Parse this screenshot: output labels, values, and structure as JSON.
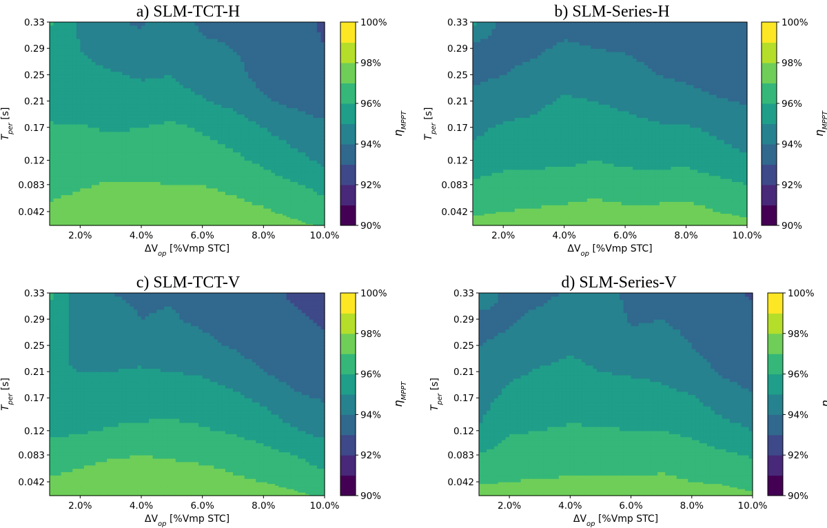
{
  "chart_data": [
    {
      "type": "heatmap",
      "subtype": "filled-contour",
      "title": "a) SLM-TCT-H",
      "xlabel": "ΔV_op [%Vmp STC]",
      "ylabel": "T_per [s]",
      "colorbar_label": "η_MPPT",
      "x_ticks": [
        "2.0%",
        "4.0%",
        "6.0%",
        "8.0%",
        "10.0%"
      ],
      "y_ticks": [
        "0.042",
        "0.083",
        "0.12",
        "0.17",
        "0.21",
        "0.25",
        "0.29",
        "0.33"
      ],
      "x": [
        1,
        2,
        3,
        4,
        5,
        6,
        7,
        8,
        9,
        10
      ],
      "y": [
        0.021,
        0.042,
        0.083,
        0.12,
        0.17,
        0.21,
        0.25,
        0.29,
        0.33
      ],
      "z": [
        [
          97.6,
          97.7,
          97.9,
          97.9,
          97.9,
          97.8,
          97.7,
          97.5,
          97.2,
          96.9
        ],
        [
          97.2,
          97.4,
          97.6,
          97.7,
          97.6,
          97.5,
          97.3,
          97.1,
          96.8,
          96.4
        ],
        [
          96.7,
          96.9,
          97.1,
          97.1,
          97.0,
          97.0,
          96.8,
          96.5,
          96.1,
          95.7
        ],
        [
          96.3,
          96.4,
          96.5,
          96.5,
          96.5,
          96.4,
          96.2,
          95.8,
          95.3,
          94.8
        ],
        [
          96.1,
          96.1,
          95.9,
          96.0,
          96.2,
          95.9,
          95.6,
          95.0,
          94.5,
          94.2
        ],
        [
          95.6,
          95.3,
          95.2,
          95.4,
          95.3,
          95.1,
          94.7,
          94.1,
          93.8,
          93.5
        ],
        [
          95.6,
          95.2,
          95.1,
          94.9,
          95.0,
          94.6,
          94.3,
          93.7,
          93.6,
          93.3
        ],
        [
          95.9,
          95.0,
          94.6,
          94.3,
          94.7,
          94.2,
          94.0,
          93.6,
          93.3,
          93.0
        ],
        [
          96.1,
          94.8,
          94.1,
          93.9,
          94.6,
          93.8,
          93.7,
          93.5,
          93.2,
          92.9
        ]
      ]
    },
    {
      "type": "heatmap",
      "subtype": "filled-contour",
      "title": "b) SLM-Series-H",
      "xlabel": "ΔV_op [%Vmp STC]",
      "ylabel": "T_per [s]",
      "colorbar_label": "η_MPPT",
      "x_ticks": [
        "2.0%",
        "4.0%",
        "6.0%",
        "8.0%",
        "10.0%"
      ],
      "y_ticks": [
        "0.042",
        "0.083",
        "0.12",
        "0.17",
        "0.21",
        "0.25",
        "0.29",
        "0.33"
      ],
      "x": [
        1,
        2,
        3,
        4,
        5,
        6,
        7,
        8,
        9,
        10
      ],
      "y": [
        0.021,
        0.042,
        0.083,
        0.12,
        0.17,
        0.21,
        0.25,
        0.29,
        0.33
      ],
      "z": [
        [
          97.5,
          97.6,
          97.7,
          97.7,
          97.8,
          97.7,
          97.7,
          97.8,
          97.6,
          97.3
        ],
        [
          96.8,
          97.0,
          97.1,
          97.2,
          97.3,
          97.2,
          97.2,
          97.3,
          97.0,
          96.8
        ],
        [
          96.2,
          96.4,
          96.4,
          96.5,
          96.7,
          96.5,
          96.5,
          96.6,
          96.3,
          96.0
        ],
        [
          95.3,
          95.7,
          95.8,
          95.8,
          96.0,
          95.8,
          95.7,
          95.8,
          95.4,
          95.1
        ],
        [
          94.8,
          95.1,
          95.2,
          95.6,
          95.5,
          95.3,
          95.1,
          95.1,
          94.8,
          94.5
        ],
        [
          94.3,
          94.6,
          94.8,
          95.1,
          95.0,
          94.8,
          94.6,
          94.4,
          94.1,
          93.9
        ],
        [
          93.8,
          94.0,
          94.3,
          94.7,
          94.5,
          94.4,
          94.0,
          93.8,
          93.6,
          93.4
        ],
        [
          93.6,
          93.7,
          93.8,
          94.2,
          94.0,
          93.9,
          93.7,
          93.6,
          93.5,
          93.4
        ],
        [
          95.2,
          93.6,
          93.5,
          93.6,
          93.6,
          93.6,
          93.5,
          93.5,
          93.4,
          93.4
        ]
      ]
    },
    {
      "type": "heatmap",
      "subtype": "filled-contour",
      "title": "c) SLM-TCT-V",
      "xlabel": "ΔV_op [%Vmp STC]",
      "ylabel": "T_per [s]",
      "colorbar_label": "η_MPPT",
      "x_ticks": [
        "2.0%",
        "4.0%",
        "6.0%",
        "8.0%",
        "10.0%"
      ],
      "y_ticks": [
        "0.042",
        "0.083",
        "0.12",
        "0.17",
        "0.21",
        "0.25",
        "0.29",
        "0.33"
      ],
      "x": [
        1,
        2,
        3,
        4,
        5,
        6,
        7,
        8,
        9,
        10
      ],
      "y": [
        0.021,
        0.042,
        0.083,
        0.12,
        0.17,
        0.21,
        0.25,
        0.29,
        0.33
      ],
      "z": [
        [
          97.6,
          97.7,
          97.9,
          97.9,
          97.9,
          97.8,
          97.7,
          97.5,
          97.2,
          96.9
        ],
        [
          97.1,
          97.3,
          97.5,
          97.6,
          97.5,
          97.4,
          97.2,
          97.0,
          96.7,
          96.3
        ],
        [
          96.5,
          96.7,
          96.9,
          97.0,
          96.9,
          96.8,
          96.6,
          96.3,
          96.0,
          95.6
        ],
        [
          95.8,
          95.9,
          96.1,
          96.2,
          96.3,
          96.1,
          95.9,
          95.6,
          95.1,
          94.7
        ],
        [
          95.3,
          95.3,
          95.4,
          95.5,
          95.5,
          95.4,
          95.2,
          94.8,
          94.2,
          93.9
        ],
        [
          95.1,
          95.0,
          95.0,
          95.1,
          95.0,
          94.9,
          94.6,
          94.0,
          93.6,
          93.4
        ],
        [
          95.4,
          94.7,
          94.5,
          94.6,
          94.4,
          94.3,
          93.9,
          93.5,
          93.3,
          93.1
        ],
        [
          95.8,
          94.5,
          94.2,
          94.0,
          94.1,
          93.8,
          93.5,
          93.3,
          93.1,
          92.9
        ],
        [
          96.2,
          94.3,
          94.0,
          93.9,
          93.9,
          93.7,
          93.4,
          93.2,
          92.9,
          92.8
        ]
      ]
    },
    {
      "type": "heatmap",
      "subtype": "filled-contour",
      "title": "d) SLM-Series-V",
      "xlabel": "ΔV_op [%Vmp STC]",
      "ylabel": "T_per [s]",
      "colorbar_label": "η_MPPT",
      "x_ticks": [
        "2.0%",
        "4.0%",
        "6.0%",
        "8.0%",
        "10.0%"
      ],
      "y_ticks": [
        "0.042",
        "0.083",
        "0.12",
        "0.17",
        "0.21",
        "0.25",
        "0.29",
        "0.33"
      ],
      "x": [
        1,
        2,
        3,
        4,
        5,
        6,
        7,
        8,
        9,
        10
      ],
      "y": [
        0.021,
        0.042,
        0.083,
        0.12,
        0.17,
        0.21,
        0.25,
        0.29,
        0.33
      ],
      "z": [
        [
          97.5,
          97.6,
          97.7,
          97.7,
          97.7,
          97.7,
          97.7,
          97.6,
          97.5,
          97.2
        ],
        [
          96.9,
          97.0,
          97.1,
          97.1,
          97.1,
          97.1,
          97.2,
          97.0,
          96.9,
          96.6
        ],
        [
          96.1,
          96.4,
          96.5,
          96.6,
          96.6,
          96.6,
          96.6,
          96.4,
          96.2,
          95.9
        ],
        [
          95.1,
          95.9,
          96.0,
          96.1,
          96.1,
          96.0,
          96.0,
          95.8,
          95.4,
          95.0
        ],
        [
          94.6,
          95.3,
          95.5,
          95.6,
          95.5,
          95.4,
          95.3,
          95.1,
          94.5,
          94.1
        ],
        [
          94.3,
          94.8,
          95.1,
          95.2,
          95.0,
          94.9,
          94.8,
          94.4,
          93.9,
          93.6
        ],
        [
          94.0,
          94.2,
          94.6,
          94.9,
          94.7,
          94.3,
          94.5,
          94.0,
          93.6,
          93.4
        ],
        [
          93.7,
          93.9,
          94.2,
          94.6,
          94.9,
          93.9,
          94.0,
          93.7,
          93.4,
          93.3
        ],
        [
          94.6,
          93.7,
          93.8,
          94.1,
          94.7,
          93.6,
          93.7,
          93.5,
          93.3,
          92.9
        ]
      ]
    }
  ],
  "colorbar": {
    "ticks": [
      "90%",
      "92%",
      "94%",
      "96%",
      "98%",
      "100%"
    ],
    "levels": [
      90,
      91,
      92,
      93,
      94,
      95,
      96,
      97,
      98,
      99,
      100
    ],
    "colors": [
      "#440154",
      "#482878",
      "#3e4989",
      "#31688e",
      "#26828e",
      "#1f9e89",
      "#35b779",
      "#6ece58",
      "#b5de2b",
      "#fde725"
    ]
  }
}
